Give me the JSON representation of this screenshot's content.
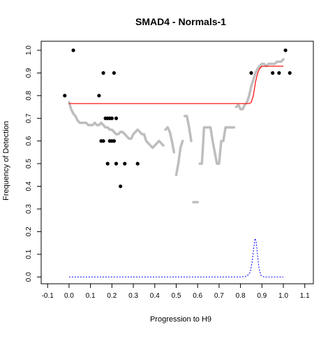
{
  "chart_data": {
    "type": "scatter",
    "title": "SMAD4 - Normals-1",
    "xlabel": "Progression to H9",
    "ylabel": "Frequency of Detection",
    "xlim": [
      -0.13,
      1.14
    ],
    "ylim": [
      -0.03,
      1.04
    ],
    "x_ticks": [
      "-0.1",
      "0.0",
      "0.1",
      "0.2",
      "0.3",
      "0.4",
      "0.5",
      "0.6",
      "0.7",
      "0.8",
      "0.9",
      "1.0",
      "1.1"
    ],
    "y_ticks": [
      "0.0",
      "0.1",
      "0.2",
      "0.3",
      "0.4",
      "0.5",
      "0.6",
      "0.7",
      "0.8",
      "0.9",
      "1.0"
    ],
    "grid": false,
    "colors": {
      "observed": "#000000",
      "smoothed": "#bebebe",
      "fit": "#ff0000",
      "density": "#0000ff"
    },
    "series": [
      {
        "kind": "observed-points",
        "points": [
          [
            -0.02,
            0.8
          ],
          [
            0.02,
            1.0
          ],
          [
            0.14,
            0.8
          ],
          [
            0.15,
            0.6
          ],
          [
            0.16,
            0.6
          ],
          [
            0.16,
            0.9
          ],
          [
            0.17,
            0.7
          ],
          [
            0.18,
            0.7
          ],
          [
            0.18,
            0.5
          ],
          [
            0.19,
            0.6
          ],
          [
            0.19,
            0.7
          ],
          [
            0.2,
            0.6
          ],
          [
            0.2,
            0.7
          ],
          [
            0.21,
            0.6
          ],
          [
            0.21,
            0.9
          ],
          [
            0.22,
            0.7
          ],
          [
            0.22,
            0.5
          ],
          [
            0.24,
            0.4
          ],
          [
            0.26,
            0.5
          ],
          [
            0.32,
            0.5
          ],
          [
            0.85,
            0.9
          ],
          [
            0.95,
            0.9
          ],
          [
            0.98,
            0.9
          ],
          [
            1.01,
            1.0
          ],
          [
            1.03,
            0.9
          ]
        ]
      },
      {
        "kind": "smoothed-points",
        "segments": [
          [
            [
              0.0,
              0.77
            ],
            [
              0.01,
              0.74
            ],
            [
              0.02,
              0.72
            ],
            [
              0.03,
              0.71
            ],
            [
              0.04,
              0.69
            ],
            [
              0.05,
              0.68
            ],
            [
              0.06,
              0.68
            ],
            [
              0.07,
              0.68
            ],
            [
              0.08,
              0.68
            ],
            [
              0.09,
              0.67
            ],
            [
              0.1,
              0.67
            ],
            [
              0.11,
              0.67
            ],
            [
              0.12,
              0.68
            ],
            [
              0.13,
              0.67
            ],
            [
              0.14,
              0.67
            ],
            [
              0.15,
              0.68
            ],
            [
              0.16,
              0.67
            ],
            [
              0.17,
              0.66
            ],
            [
              0.18,
              0.66
            ],
            [
              0.19,
              0.65
            ],
            [
              0.2,
              0.65
            ],
            [
              0.21,
              0.64
            ],
            [
              0.22,
              0.63
            ],
            [
              0.23,
              0.63
            ],
            [
              0.24,
              0.64
            ],
            [
              0.25,
              0.64
            ],
            [
              0.26,
              0.63
            ],
            [
              0.27,
              0.62
            ],
            [
              0.28,
              0.61
            ],
            [
              0.29,
              0.61
            ],
            [
              0.3,
              0.63
            ],
            [
              0.31,
              0.64
            ],
            [
              0.32,
              0.65
            ],
            [
              0.33,
              0.64
            ],
            [
              0.34,
              0.63
            ],
            [
              0.35,
              0.63
            ],
            [
              0.36,
              0.6
            ],
            [
              0.37,
              0.59
            ],
            [
              0.38,
              0.58
            ],
            [
              0.39,
              0.57
            ],
            [
              0.4,
              0.58
            ],
            [
              0.41,
              0.59
            ],
            [
              0.42,
              0.6
            ],
            [
              0.43,
              0.59
            ],
            [
              0.44,
              0.58
            ]
          ],
          [
            [
              0.45,
              0.65
            ],
            [
              0.46,
              0.66
            ],
            [
              0.47,
              0.64
            ],
            [
              0.48,
              0.6
            ],
            [
              0.49,
              0.55
            ]
          ],
          [
            [
              0.5,
              0.45
            ],
            [
              0.51,
              0.5
            ],
            [
              0.52,
              0.57
            ],
            [
              0.53,
              0.6
            ]
          ],
          [
            [
              0.54,
              0.71
            ],
            [
              0.55,
              0.71
            ],
            [
              0.56,
              0.66
            ],
            [
              0.57,
              0.6
            ]
          ],
          [
            [
              0.58,
              0.33
            ],
            [
              0.59,
              0.33
            ],
            [
              0.6,
              0.33
            ]
          ],
          [
            [
              0.61,
              0.5
            ],
            [
              0.62,
              0.5
            ],
            [
              0.63,
              0.66
            ],
            [
              0.64,
              0.66
            ],
            [
              0.65,
              0.66
            ],
            [
              0.66,
              0.66
            ],
            [
              0.67,
              0.6
            ],
            [
              0.68,
              0.55
            ],
            [
              0.69,
              0.5
            ],
            [
              0.7,
              0.5
            ],
            [
              0.71,
              0.6
            ],
            [
              0.72,
              0.6
            ],
            [
              0.73,
              0.66
            ],
            [
              0.74,
              0.66
            ],
            [
              0.75,
              0.66
            ],
            [
              0.76,
              0.66
            ],
            [
              0.77,
              0.66
            ]
          ],
          [
            [
              0.78,
              0.75
            ],
            [
              0.79,
              0.76
            ],
            [
              0.8,
              0.74
            ],
            [
              0.81,
              0.74
            ],
            [
              0.82,
              0.76
            ],
            [
              0.83,
              0.77
            ],
            [
              0.84,
              0.8
            ],
            [
              0.85,
              0.84
            ],
            [
              0.86,
              0.87
            ],
            [
              0.87,
              0.9
            ],
            [
              0.88,
              0.92
            ],
            [
              0.89,
              0.93
            ],
            [
              0.9,
              0.94
            ],
            [
              0.91,
              0.94
            ],
            [
              0.92,
              0.93
            ],
            [
              0.93,
              0.94
            ],
            [
              0.94,
              0.94
            ],
            [
              0.95,
              0.94
            ],
            [
              0.96,
              0.94
            ],
            [
              0.97,
              0.95
            ],
            [
              0.98,
              0.95
            ],
            [
              0.99,
              0.95
            ],
            [
              1.0,
              0.96
            ]
          ]
        ]
      },
      {
        "kind": "fit-line",
        "points": [
          [
            0.0,
            0.765
          ],
          [
            0.84,
            0.765
          ],
          [
            0.85,
            0.77
          ],
          [
            0.86,
            0.8
          ],
          [
            0.87,
            0.86
          ],
          [
            0.88,
            0.9
          ],
          [
            0.89,
            0.92
          ],
          [
            0.9,
            0.93
          ],
          [
            0.92,
            0.93
          ],
          [
            1.0,
            0.93
          ]
        ]
      },
      {
        "kind": "density-line",
        "points": [
          [
            0.0,
            0.0
          ],
          [
            0.8,
            0.0
          ],
          [
            0.83,
            0.004
          ],
          [
            0.845,
            0.02
          ],
          [
            0.855,
            0.07
          ],
          [
            0.862,
            0.13
          ],
          [
            0.868,
            0.17
          ],
          [
            0.874,
            0.15
          ],
          [
            0.88,
            0.09
          ],
          [
            0.887,
            0.035
          ],
          [
            0.895,
            0.008
          ],
          [
            0.91,
            0.0
          ],
          [
            1.0,
            0.0
          ]
        ]
      }
    ]
  }
}
